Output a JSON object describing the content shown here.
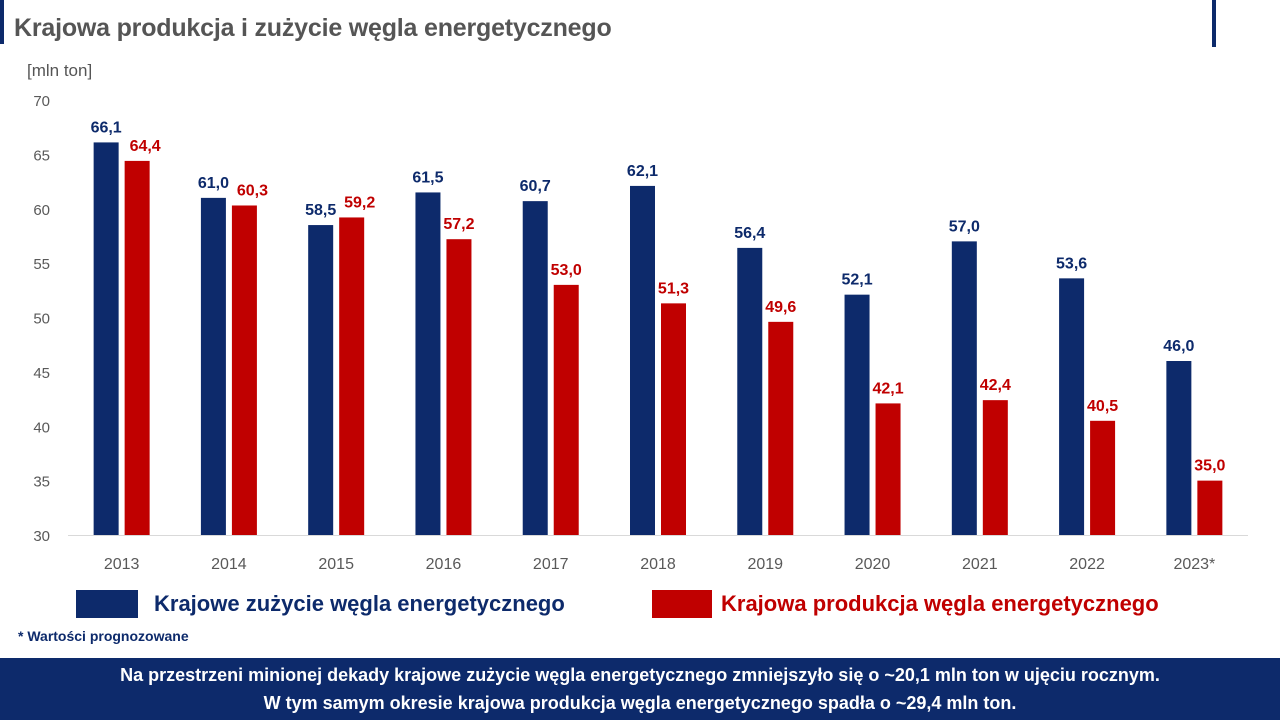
{
  "header": {
    "title": "Krajowa produkcja i zużycie węgla energetycznego",
    "unit_label": "[mln ton]"
  },
  "colors": {
    "consumption": "#0d2a6b",
    "production": "#c00000",
    "title": "#555555",
    "banner_bg": "#0d2a6b"
  },
  "chart_data": {
    "type": "bar",
    "categories": [
      "2013",
      "2014",
      "2015",
      "2016",
      "2017",
      "2018",
      "2019",
      "2020",
      "2021",
      "2022",
      "2023*"
    ],
    "series": [
      {
        "name": "Krajowe zużycie węgla energetycznego",
        "color": "#0d2a6b",
        "values": [
          66.1,
          61.0,
          58.5,
          61.5,
          60.7,
          62.1,
          56.4,
          52.1,
          57.0,
          53.6,
          46.0
        ],
        "labels": [
          "66,1",
          "61,0",
          "58,5",
          "61,5",
          "60,7",
          "62,1",
          "56,4",
          "52,1",
          "57,0",
          "53,6",
          "46,0"
        ]
      },
      {
        "name": "Krajowa produkcja węgla energetycznego",
        "color": "#c00000",
        "values": [
          64.4,
          60.3,
          59.2,
          57.2,
          53.0,
          51.3,
          49.6,
          42.1,
          42.4,
          40.5,
          35.0
        ],
        "labels": [
          "64,4",
          "60,3",
          "59,2",
          "57,2",
          "53,0",
          "51,3",
          "49,6",
          "42,1",
          "42,4",
          "40,5",
          "35,0"
        ]
      }
    ],
    "ylim": [
      30,
      70
    ],
    "yticks": [
      "30",
      "35",
      "40",
      "45",
      "50",
      "55",
      "60",
      "65",
      "70"
    ],
    "ylabel": "[mln ton]",
    "grid": false,
    "legend_position": "bottom"
  },
  "legend": {
    "consumption_label": "Krajowe zużycie węgla energetycznego",
    "production_label": "Krajowa produkcja węgla energetycznego"
  },
  "footnote": "* Wartości prognozowane",
  "banner": {
    "line1": "Na przestrzeni minionej dekady krajowe zużycie węgla energetycznego zmniejszyło się o ~20,1 mln ton w ujęciu rocznym.",
    "line2": "W tym samym okresie krajowa produkcja węgla energetycznego spadła o ~29,4 mln ton."
  }
}
